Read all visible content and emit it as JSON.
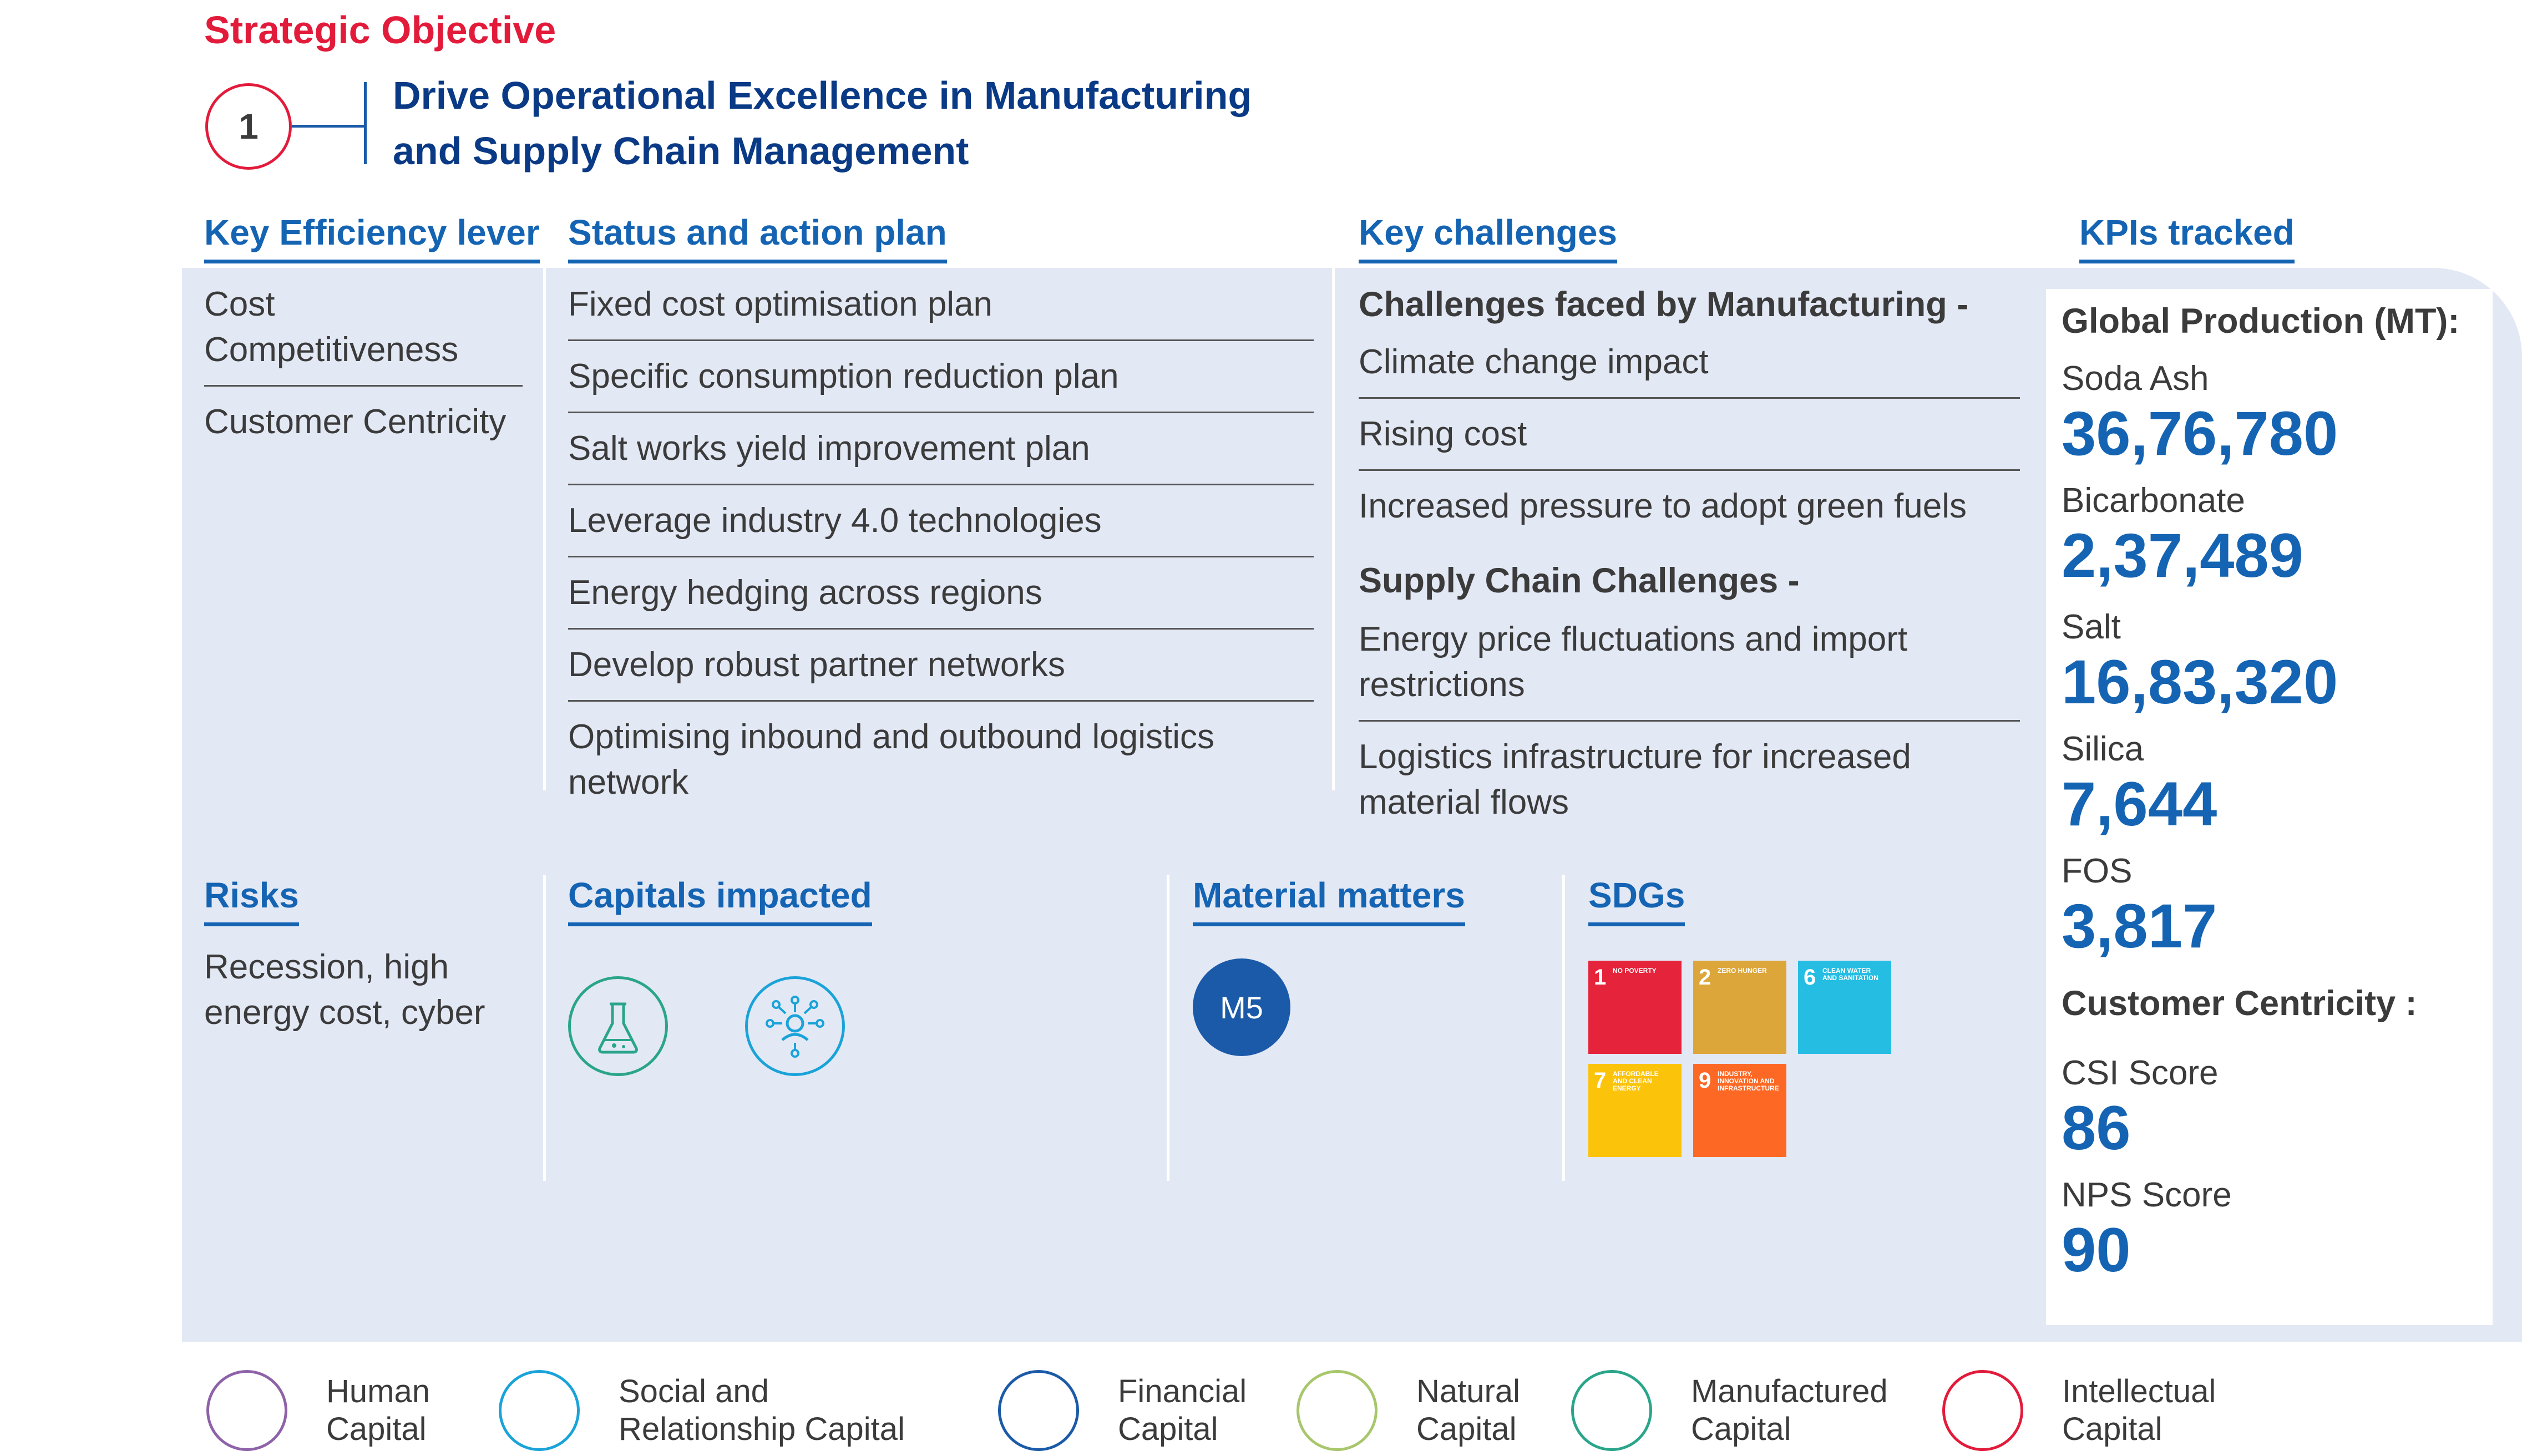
{
  "heading": {
    "section": "Strategic Objective",
    "number": "1",
    "title_line1": "Drive Operational Excellence in Manufacturing",
    "title_line2": "and Supply Chain Management"
  },
  "key_efficiency": {
    "header": "Key Efficiency lever",
    "items": [
      "Cost Competitiveness",
      "Customer Centricity"
    ]
  },
  "status": {
    "header": "Status and action plan",
    "items": [
      "Fixed cost optimisation plan",
      "Specific consumption reduction plan",
      "Salt works yield improvement plan",
      "Leverage industry 4.0 technologies",
      "Energy hedging across regions",
      "Develop robust partner networks",
      "Optimising inbound and outbound logistics network"
    ]
  },
  "challenges": {
    "header": "Key challenges",
    "manufacturing_title": "Challenges faced by Manufacturing -",
    "manufacturing": [
      "Climate change impact",
      "Rising cost",
      "Increased pressure to adopt green fuels"
    ],
    "supply_title": "Supply Chain Challenges -",
    "supply": [
      "Energy price fluctuations and import restrictions",
      "Logistics infrastructure for increased material flows"
    ]
  },
  "kpis": {
    "header": "KPIs tracked",
    "global_title": "Global Production (MT):",
    "production": [
      {
        "label": "Soda Ash",
        "value": "36,76,780"
      },
      {
        "label": "Bicarbonate",
        "value": "2,37,489"
      },
      {
        "label": "Salt",
        "value": "16,83,320"
      },
      {
        "label": "Silica",
        "value": "7,644"
      },
      {
        "label": "FOS",
        "value": "3,817"
      }
    ],
    "customer_title": "Customer Centricity :",
    "customer": [
      {
        "label": "CSI Score",
        "value": "86"
      },
      {
        "label": "NPS Score",
        "value": "90"
      }
    ]
  },
  "risks": {
    "header": "Risks",
    "text": "Recession, high energy cost, cyber"
  },
  "capitals_impacted": {
    "header": "Capitals impacted",
    "icons": [
      "flask-icon",
      "network-icon"
    ]
  },
  "material_matters": {
    "header": "Material matters",
    "badge": "M5"
  },
  "sdgs": {
    "header": "SDGs",
    "tiles": [
      {
        "num": "1",
        "label": "NO POVERTY",
        "color": "#e5243b"
      },
      {
        "num": "2",
        "label": "ZERO HUNGER",
        "color": "#dda63a"
      },
      {
        "num": "6",
        "label": "CLEAN WATER AND SANITATION",
        "color": "#26bde2"
      },
      {
        "num": "7",
        "label": "AFFORDABLE AND CLEAN ENERGY",
        "color": "#fcc30b"
      },
      {
        "num": "9",
        "label": "INDUSTRY, INNOVATION AND INFRASTRUCTURE",
        "color": "#fd6925"
      }
    ]
  },
  "legend": [
    {
      "label": "Human Capital",
      "icon": "human-capital-icon",
      "color": "#8e62a8"
    },
    {
      "label": "Social and Relationship Capital",
      "icon": "social-capital-icon",
      "color": "#1aa3d9"
    },
    {
      "label": "Financial Capital",
      "icon": "financial-capital-icon",
      "color": "#1b5aa8"
    },
    {
      "label": "Natural Capital",
      "icon": "natural-capital-icon",
      "color": "#a8c66c"
    },
    {
      "label": "Manufactured Capital",
      "icon": "manufactured-capital-icon",
      "color": "#2aa58a"
    },
    {
      "label": "Intellectual Capital",
      "icon": "intellectual-capital-icon",
      "color": "#e31b3b"
    }
  ]
}
